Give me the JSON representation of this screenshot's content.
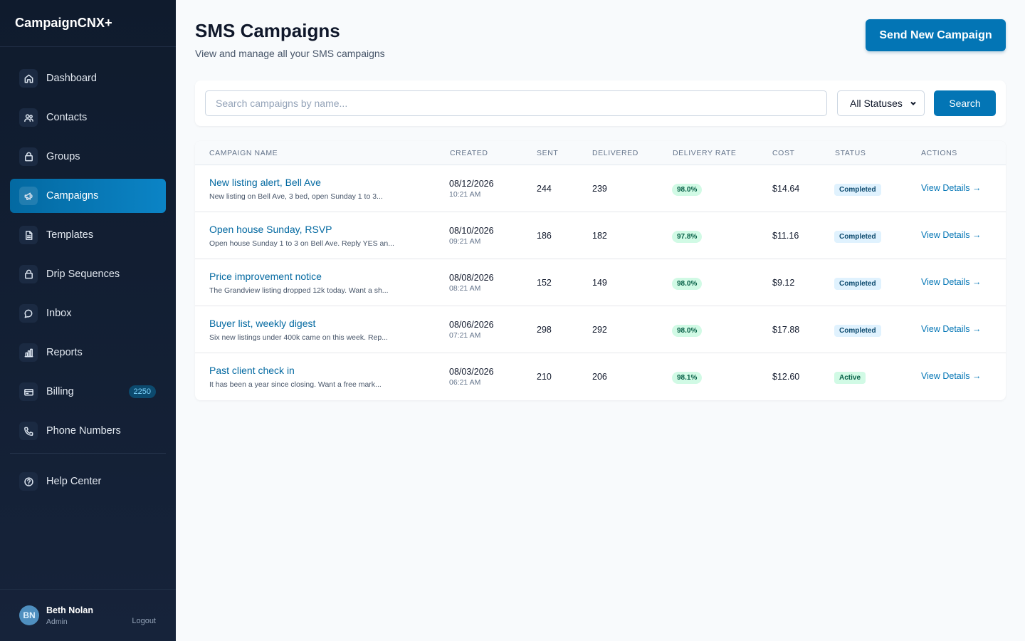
{
  "app": {
    "brand": "CampaignCNX+"
  },
  "sidebar": {
    "items": [
      {
        "label": "Dashboard",
        "icon": "home-icon"
      },
      {
        "label": "Contacts",
        "icon": "users-icon"
      },
      {
        "label": "Groups",
        "icon": "folder-icon"
      },
      {
        "label": "Campaigns",
        "icon": "megaphone-icon",
        "active": true
      },
      {
        "label": "Templates",
        "icon": "document-icon"
      },
      {
        "label": "Drip Sequences",
        "icon": "layers-icon"
      },
      {
        "label": "Inbox",
        "icon": "chat-bubble-icon"
      },
      {
        "label": "Reports",
        "icon": "bar-chart-icon"
      },
      {
        "label": "Billing",
        "icon": "credit-card-icon",
        "badge": "2250"
      },
      {
        "label": "Phone Numbers",
        "icon": "phone-icon"
      }
    ],
    "help": {
      "label": "Help Center",
      "icon": "help-circle-icon"
    },
    "user": {
      "initials": "BN",
      "name": "Beth Nolan",
      "role": "Admin",
      "logout": "Logout"
    }
  },
  "header": {
    "title": "SMS Campaigns",
    "subtitle": "View and manage all your SMS campaigns",
    "primary_button": "Send New Campaign"
  },
  "search": {
    "placeholder": "Search campaigns by name...",
    "value": "",
    "status_selected": "All Statuses",
    "button": "Search"
  },
  "table": {
    "columns": [
      "Campaign Name",
      "Created",
      "Sent",
      "Delivered",
      "Delivery Rate",
      "Cost",
      "Status",
      "Actions"
    ],
    "rows": [
      {
        "name": "New listing alert, Bell Ave",
        "preview": "New listing on Bell Ave, 3 bed, open Sunday 1 to 3...",
        "date": "08/12/2026",
        "time": "10:21 AM",
        "sent": "244",
        "delivered": "239",
        "rate": "98.0%",
        "cost": "$14.64",
        "status": "Completed",
        "action": "View Details →"
      },
      {
        "name": "Open house Sunday, RSVP",
        "preview": "Open house Sunday 1 to 3 on Bell Ave. Reply YES an...",
        "date": "08/10/2026",
        "time": "09:21 AM",
        "sent": "186",
        "delivered": "182",
        "rate": "97.8%",
        "cost": "$11.16",
        "status": "Completed",
        "action": "View Details →"
      },
      {
        "name": "Price improvement notice",
        "preview": "The Grandview listing dropped 12k today. Want a sh...",
        "date": "08/08/2026",
        "time": "08:21 AM",
        "sent": "152",
        "delivered": "149",
        "rate": "98.0%",
        "cost": "$9.12",
        "status": "Completed",
        "action": "View Details →"
      },
      {
        "name": "Buyer list, weekly digest",
        "preview": "Six new listings under 400k came on this week. Rep...",
        "date": "08/06/2026",
        "time": "07:21 AM",
        "sent": "298",
        "delivered": "292",
        "rate": "98.0%",
        "cost": "$17.88",
        "status": "Completed",
        "action": "View Details →"
      },
      {
        "name": "Past client check in",
        "preview": "It has been a year since closing. Want a free mark...",
        "date": "08/03/2026",
        "time": "06:21 AM",
        "sent": "210",
        "delivered": "206",
        "rate": "98.1%",
        "cost": "$12.60",
        "status": "Active",
        "action": "View Details →"
      }
    ]
  },
  "colors": {
    "accent": "#0375b5",
    "sidebar_bg": "#0f1b2d",
    "link": "#0369a1",
    "rate_badge_bg": "#d1fae5",
    "completed_badge_bg": "#e0f2fe"
  }
}
